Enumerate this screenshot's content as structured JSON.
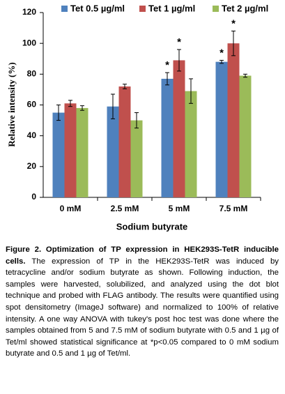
{
  "chart_data": {
    "type": "bar",
    "ylabel": "Relative intensity (%)",
    "xlabel": "Sodium butyrate",
    "categories": [
      "0 mM",
      "2.5 mM",
      "5 mM",
      "7.5 mM"
    ],
    "series": [
      {
        "name": "Tet 0.5 µg/ml",
        "color": "#4f81bd",
        "values": [
          55,
          59,
          77,
          88
        ],
        "errors": [
          5,
          8,
          4,
          1
        ],
        "value_annotations": [
          null,
          null,
          "*",
          "*"
        ]
      },
      {
        "name": "Tet 1 µg/ml",
        "color": "#c0504d",
        "values": [
          61,
          72,
          89,
          100
        ],
        "errors": [
          2,
          1.5,
          7,
          8
        ],
        "value_annotations": [
          null,
          null,
          "*",
          "*"
        ]
      },
      {
        "name": "Tet 2 µg/ml",
        "color": "#9bbb59",
        "values": [
          58,
          50,
          69,
          79
        ],
        "errors": [
          1.5,
          5,
          8,
          1
        ],
        "value_annotations": [
          null,
          null,
          null,
          null
        ]
      }
    ],
    "ylim": [
      0,
      120
    ],
    "yticks": [
      0,
      20,
      40,
      60,
      80,
      100,
      120
    ],
    "grid": false,
    "legend": "top"
  },
  "caption": {
    "label": "Figure 2.  Optimization of TP expression in HEK293S-TetR inducible cells.",
    "text": " The expression of TP in the HEK293S-TetR was induced by tetracycline and/or sodium butyrate as shown. Following induction, the samples were harvested, solubilized, and analyzed using the dot blot technique and probed with FLAG antibody. The results were quantified using spot densitometry (ImageJ software) and normalized to 100% of relative intensity. A one way ANOVA with tukey's post hoc test was done where the samples obtained from 5 and 7.5 mM of sodium butyrate with 0.5 and 1 µg of Tet/ml showed statistical significance at *p<0.05 compared to 0 mM sodium butyrate and 0.5 and 1 µg of Tet/ml."
  }
}
